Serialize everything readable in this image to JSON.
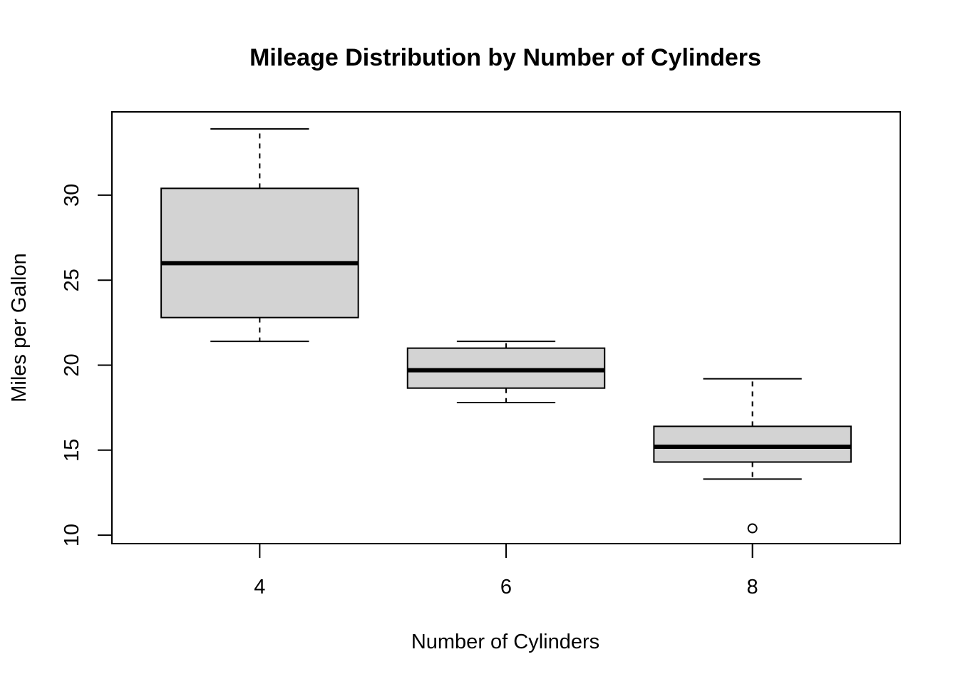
{
  "chart_data": {
    "type": "boxplot",
    "title": "Mileage Distribution by Number of Cylinders",
    "xlabel": "Number of Cylinders",
    "ylabel": "Miles per Gallon",
    "ylim": [
      9.5,
      34.9
    ],
    "yticks": [
      "10",
      "15",
      "20",
      "25",
      "30"
    ],
    "categories": [
      "4",
      "6",
      "8"
    ],
    "box_fill": "#d3d3d3",
    "grid": false,
    "legend": "none",
    "boxes": [
      {
        "category": "4",
        "whisker_low": 21.4,
        "q1": 22.8,
        "median": 26.0,
        "q3": 30.4,
        "whisker_high": 33.9,
        "outliers": []
      },
      {
        "category": "6",
        "whisker_low": 17.8,
        "q1": 18.65,
        "median": 19.7,
        "q3": 21.0,
        "whisker_high": 21.4,
        "outliers": []
      },
      {
        "category": "8",
        "whisker_low": 13.3,
        "q1": 14.3,
        "median": 15.2,
        "q3": 16.4,
        "whisker_high": 19.2,
        "outliers": [
          10.4
        ]
      }
    ]
  }
}
